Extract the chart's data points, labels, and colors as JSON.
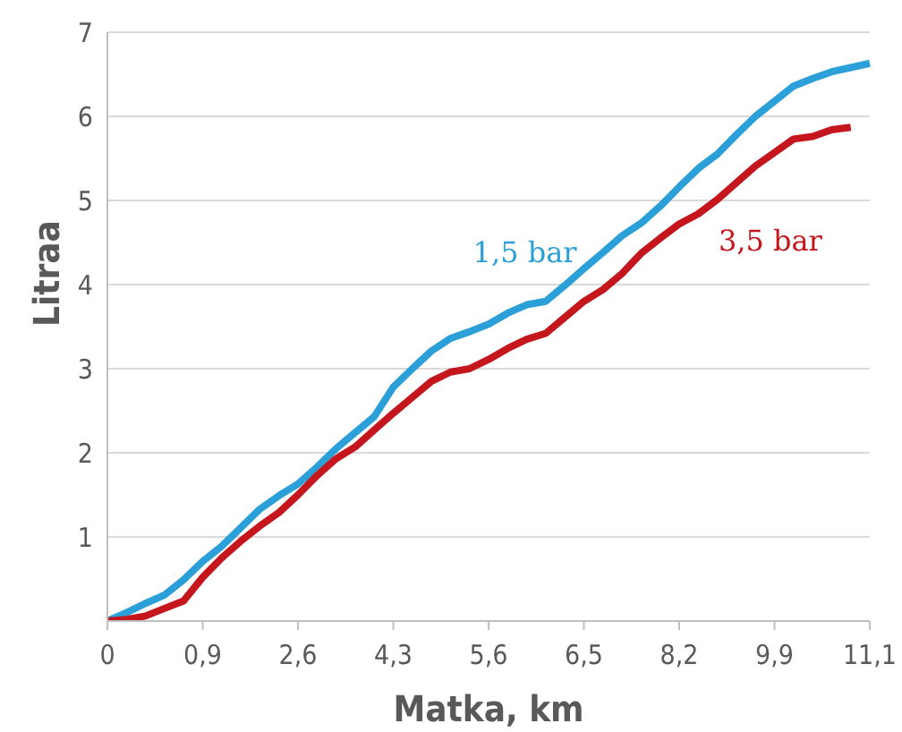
{
  "chart_data": {
    "type": "line",
    "xlabel": "Matka, km",
    "ylabel": "Litraa",
    "categories": [
      "0",
      null,
      null,
      null,
      null,
      "0,9",
      null,
      null,
      null,
      null,
      "2,6",
      null,
      null,
      null,
      null,
      "4,3",
      null,
      null,
      null,
      null,
      "5,6",
      null,
      null,
      null,
      null,
      "6,5",
      null,
      null,
      null,
      null,
      "8,2",
      null,
      null,
      null,
      null,
      "9,9",
      null,
      null,
      null,
      null,
      "11,1"
    ],
    "series": [
      {
        "name": "1,5 bar",
        "color": "#2a9fd8",
        "values": [
          0,
          0.1,
          0.21,
          0.31,
          0.49,
          0.71,
          0.89,
          1.11,
          1.33,
          1.49,
          1.63,
          1.83,
          2.05,
          2.24,
          2.43,
          2.78,
          3.0,
          3.21,
          3.36,
          3.44,
          3.53,
          3.66,
          3.76,
          3.8,
          3.99,
          4.19,
          4.38,
          4.58,
          4.73,
          4.93,
          5.16,
          5.38,
          5.55,
          5.78,
          6.0,
          6.18,
          6.36,
          6.45,
          6.53,
          6.58,
          6.63
        ]
      },
      {
        "name": "3,5 bar",
        "color": "#c4161c",
        "values": [
          0,
          0.02,
          0.06,
          0.15,
          0.24,
          0.52,
          0.75,
          0.95,
          1.13,
          1.29,
          1.5,
          1.73,
          1.93,
          2.07,
          2.27,
          2.47,
          2.66,
          2.85,
          2.96,
          3.0,
          3.11,
          3.24,
          3.35,
          3.42,
          3.61,
          3.8,
          3.94,
          4.13,
          4.37,
          4.55,
          4.72,
          4.84,
          5.01,
          5.21,
          5.41,
          5.57,
          5.73,
          5.76,
          5.84,
          5.87,
          null
        ]
      }
    ],
    "ylim": [
      0,
      7
    ],
    "yticks": [
      {
        "value": 0,
        "label": null
      },
      1,
      2,
      3,
      4,
      5,
      6,
      7
    ],
    "grid": "y",
    "legend": false,
    "marker": "none",
    "line_style": "solid"
  }
}
